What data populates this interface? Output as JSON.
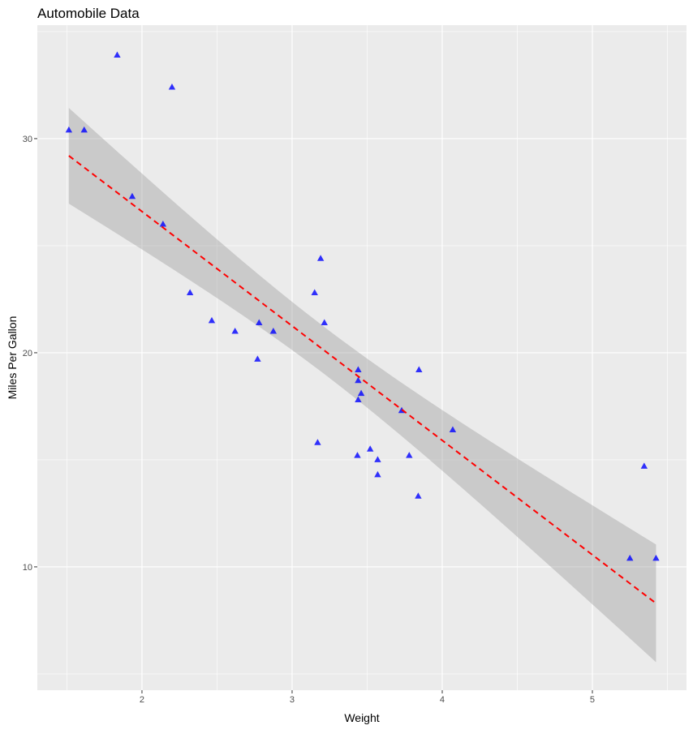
{
  "chart_data": {
    "type": "scatter",
    "title": "Automobile Data",
    "xlabel": "Weight",
    "ylabel": "Miles Per Gallon",
    "xlim": [
      1.303,
      5.627
    ],
    "ylim": [
      4.24,
      35.3
    ],
    "x_ticks": [
      2,
      3,
      4,
      5
    ],
    "y_ticks": [
      10,
      20,
      30
    ],
    "grid": true,
    "point_shape": "triangle",
    "point_color": "#0000FF",
    "trend": {
      "method": "linear regression",
      "line_color": "#FF0000",
      "line_style": "dashed",
      "confidence_band": true,
      "band_color": "#999999"
    },
    "panel_background": "#EBEBEB",
    "x": [
      2.62,
      2.875,
      2.32,
      3.215,
      3.44,
      3.46,
      3.57,
      3.19,
      3.15,
      3.44,
      3.44,
      4.07,
      3.73,
      3.78,
      5.25,
      5.424,
      5.345,
      2.2,
      1.615,
      1.835,
      2.465,
      3.52,
      3.435,
      3.84,
      3.845,
      1.935,
      2.14,
      1.513,
      3.17,
      2.77,
      3.57,
      2.78
    ],
    "y": [
      21.0,
      21.0,
      22.8,
      21.4,
      18.7,
      18.1,
      14.3,
      24.4,
      22.8,
      19.2,
      17.8,
      16.4,
      17.3,
      15.2,
      10.4,
      10.4,
      14.7,
      32.4,
      30.4,
      33.9,
      21.5,
      15.5,
      15.2,
      13.3,
      19.2,
      27.3,
      26.0,
      30.4,
      15.8,
      19.7,
      15.0,
      21.4
    ]
  }
}
